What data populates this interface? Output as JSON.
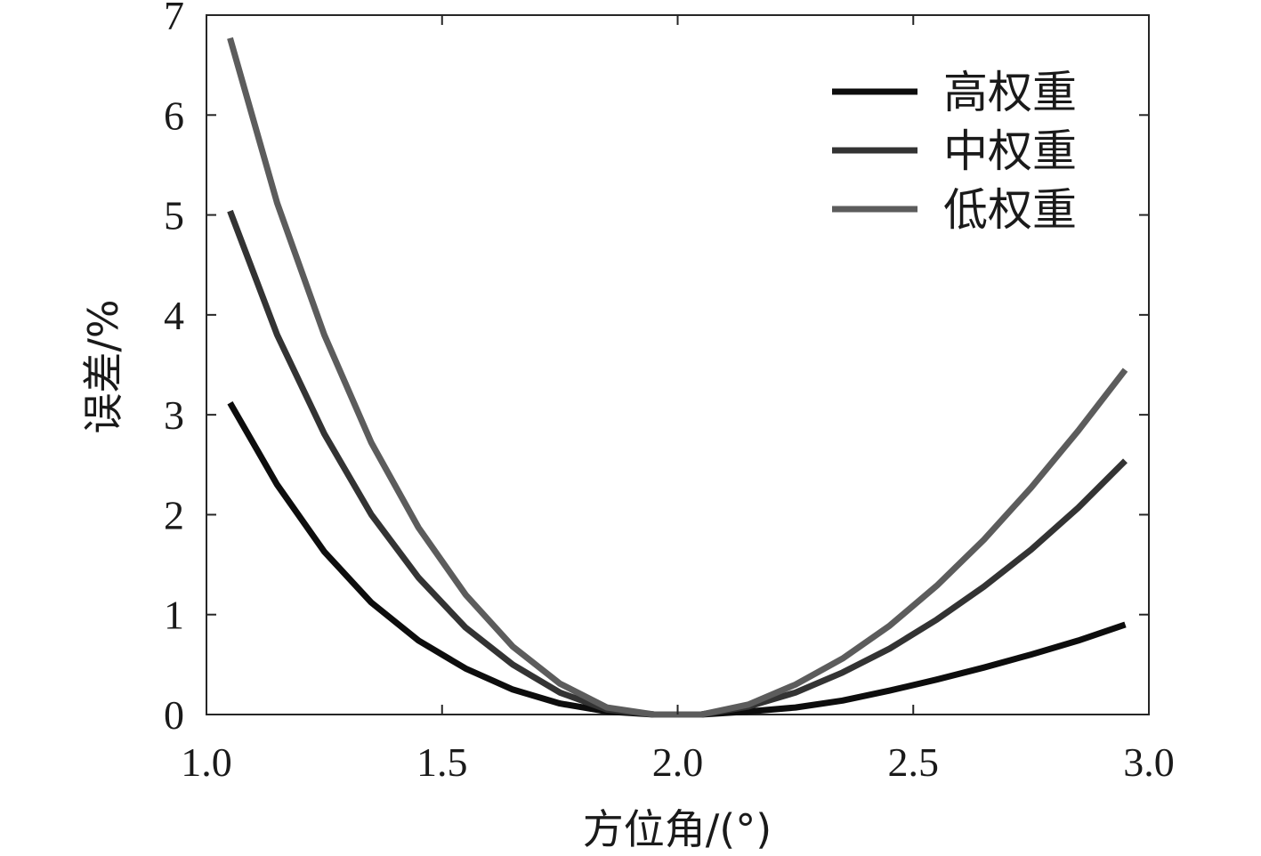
{
  "chart_data": {
    "type": "line",
    "title": "",
    "xlabel": "方位角/(°)",
    "ylabel": "误差/%",
    "xlim": [
      1.0,
      3.0
    ],
    "ylim": [
      0,
      7
    ],
    "xticks": [
      1.0,
      1.5,
      2.0,
      2.5,
      3.0
    ],
    "xtick_labels": [
      "1.0",
      "1.5",
      "2.0",
      "2.5",
      "3.0"
    ],
    "yticks": [
      0,
      1,
      2,
      3,
      4,
      5,
      6,
      7
    ],
    "ytick_labels": [
      "0",
      "1",
      "2",
      "3",
      "4",
      "5",
      "6",
      "7"
    ],
    "grid": false,
    "legend_position": "top-right",
    "x": [
      1.05,
      1.15,
      1.25,
      1.35,
      1.45,
      1.55,
      1.65,
      1.75,
      1.85,
      1.95,
      2.05,
      2.15,
      2.25,
      2.35,
      2.45,
      2.55,
      2.65,
      2.75,
      2.85,
      2.95
    ],
    "series": [
      {
        "name": "高权重",
        "color": "#0d0d0d",
        "values": [
          3.12,
          2.3,
          1.63,
          1.12,
          0.74,
          0.46,
          0.25,
          0.11,
          0.03,
          0.0,
          0.0,
          0.03,
          0.07,
          0.14,
          0.24,
          0.35,
          0.47,
          0.6,
          0.74,
          0.9
        ]
      },
      {
        "name": "中权重",
        "color": "#333333",
        "values": [
          5.04,
          3.8,
          2.81,
          2.0,
          1.37,
          0.87,
          0.5,
          0.22,
          0.05,
          0.0,
          0.0,
          0.08,
          0.22,
          0.42,
          0.66,
          0.95,
          1.28,
          1.65,
          2.07,
          2.54
        ]
      },
      {
        "name": "低权重",
        "color": "#5c5c5c",
        "values": [
          6.77,
          5.12,
          3.8,
          2.72,
          1.87,
          1.2,
          0.68,
          0.31,
          0.07,
          0.0,
          0.0,
          0.1,
          0.3,
          0.56,
          0.89,
          1.29,
          1.75,
          2.27,
          2.84,
          3.45
        ]
      }
    ]
  }
}
